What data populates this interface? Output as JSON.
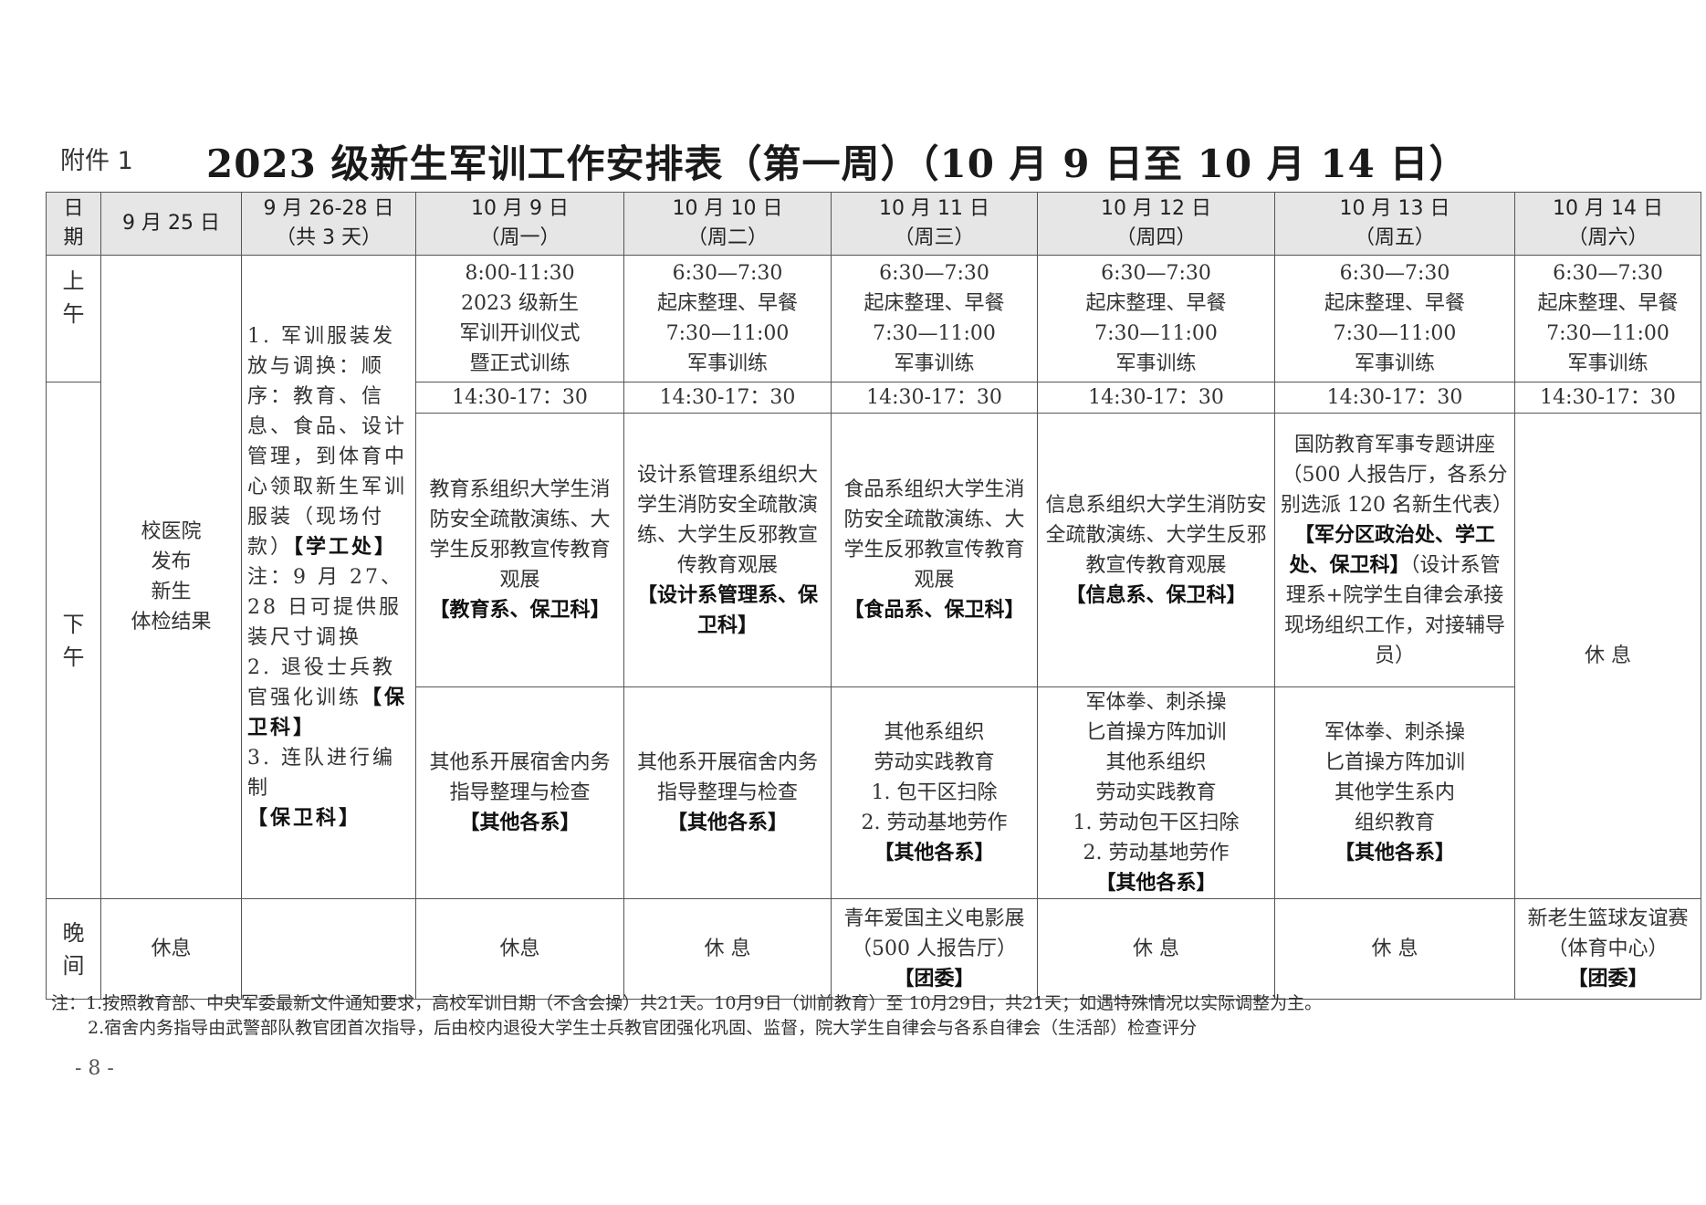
{
  "attachment_label": "附件 1",
  "title": "2023 级新生军训工作安排表（第一周）（10 月 9 日至 10 月 14 日）",
  "header": {
    "row_label": [
      "日",
      "期"
    ],
    "columns": [
      {
        "date": "9 月 25 日",
        "sub": ""
      },
      {
        "date": "9 月 26-28 日",
        "sub": "（共 3 天）"
      },
      {
        "date": "10 月 9 日",
        "sub": "（周一）"
      },
      {
        "date": "10 月 10 日",
        "sub": "（周二）"
      },
      {
        "date": "10 月 11 日",
        "sub": "（周三）"
      },
      {
        "date": "10 月 12 日",
        "sub": "（周四）"
      },
      {
        "date": "10 月 13 日",
        "sub": "（周五）"
      },
      {
        "date": "10 月 14 日",
        "sub": "（周六）"
      }
    ]
  },
  "period_labels": {
    "morning": [
      "上",
      "午"
    ],
    "afternoon": [
      "下",
      "午"
    ],
    "evening": [
      "晚",
      "间"
    ]
  },
  "sep25": [
    "校医院",
    "发布",
    "新生",
    "体检结果"
  ],
  "sep26_28": {
    "p1": "1. 军训服装发放与调换：顺序：教育、信息、食品、设计管理，到体育中心领取新生军训服装（现场付款）",
    "p1_dept": "【学工处】",
    "p1_note": "注：9 月 27、28 日可提供服装尺寸调换",
    "p2": "2. 退役士兵教官强化训练",
    "p2_dept": "【保卫科】",
    "p3": "3. 连队进行编制",
    "p3_dept": "【保卫科】"
  },
  "morning": {
    "oct9": [
      "8:00-11:30",
      "2023 级新生",
      "军训开训仪式",
      "暨正式训练"
    ],
    "standard": [
      "6:30—7:30",
      "起床整理、早餐",
      "7:30—11:00",
      "军事训练"
    ]
  },
  "afternoon_time": "14:30-17：30",
  "afternoon_a": {
    "oct9": {
      "text": "教育系组织大学生消防安全疏散演练、大学生反邪教宣传教育观展",
      "dept": "【教育系、保卫科】"
    },
    "oct10": {
      "text": "设计系管理系组织大学生消防安全疏散演练、大学生反邪教宣传教育观展",
      "dept": "【设计系管理系、保卫科】"
    },
    "oct11": {
      "text": "食品系组织大学生消防安全疏散演练、大学生反邪教宣传教育观展",
      "dept": "【食品系、保卫科】"
    },
    "oct12": {
      "text": "信息系组织大学生消防安全疏散演练、大学生反邪教宣传教育观展",
      "dept": "【信息系、保卫科】"
    },
    "oct13": {
      "text": "国防教育军事专题讲座（500 人报告厅，各系分别选派 120 名新生代表）",
      "dept": "【军分区政治处、学工处、保卫科】",
      "extra": "（设计系管理系+院学生自律会承接现场组织工作，对接辅导员）"
    },
    "oct14": "休  息"
  },
  "afternoon_b": {
    "oct9": {
      "text": "其他系开展宿舍内务指导整理与检查",
      "dept": "【其他各系】"
    },
    "oct10": {
      "text": "其他系开展宿舍内务指导整理与检查",
      "dept": "【其他各系】"
    },
    "oct11": {
      "lines": [
        "其他系组织",
        "劳动实践教育",
        "1. 包干区扫除",
        "2. 劳动基地劳作"
      ],
      "dept": "【其他各系】"
    },
    "oct12": {
      "lines": [
        "军体拳、刺杀操",
        "匕首操方阵加训",
        "其他系组织",
        "劳动实践教育",
        "1. 劳动包干区扫除",
        "2. 劳动基地劳作"
      ],
      "dept": "【其他各系】"
    },
    "oct13": {
      "lines": [
        "军体拳、刺杀操",
        "匕首操方阵加训",
        "其他学生系内",
        "组织教育"
      ],
      "dept": "【其他各系】"
    }
  },
  "evening": {
    "sep25": "休息",
    "oct9": "休息",
    "oct10": "休  息",
    "oct11": {
      "text": "青年爱国主义电影展（500 人报告厅）",
      "dept": "【团委】"
    },
    "oct12": "休  息",
    "oct13": "休  息",
    "oct14": {
      "text": "新老生篮球友谊赛（体育中心）",
      "dept": "【团委】"
    }
  },
  "notes": [
    "注：1.按照教育部、中央军委最新文件通知要求，高校军训日期（不含会操）共21天。10月9日（训前教育）至 10月29日，共21天；如遇特殊情况以实际调整为主。",
    "2.宿舍内务指导由武警部队教官团首次指导，后由校内退役大学生士兵教官团强化巩固、监督，院大学生自律会与各系自律会（生活部）检查评分"
  ],
  "page_number": "- 8 -"
}
